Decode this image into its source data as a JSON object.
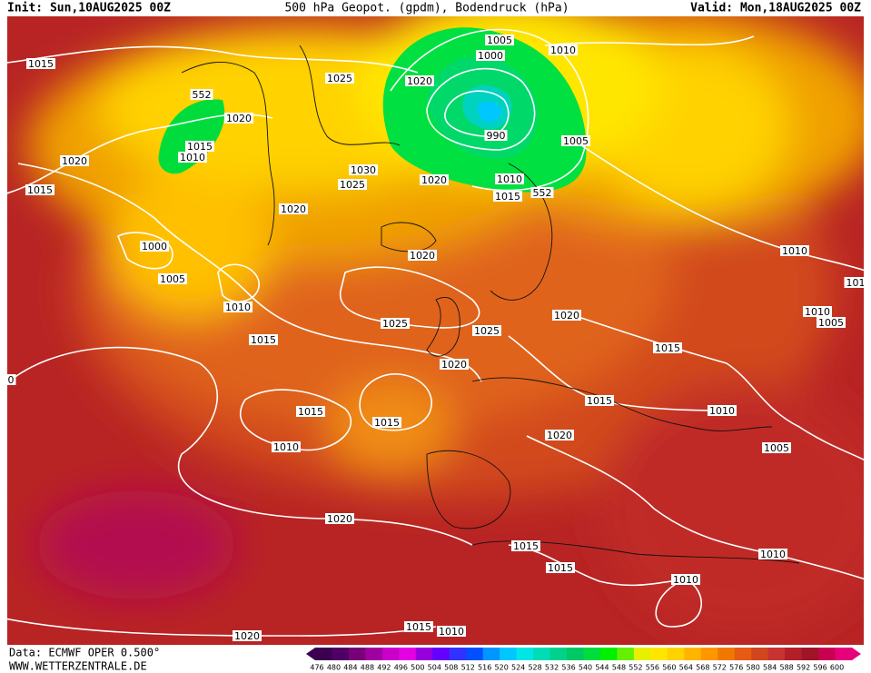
{
  "header": {
    "init": "Init: Sun,10AUG2025 00Z",
    "title": "500 hPa Geopot. (gpdm), Bodendruck (hPa)",
    "valid": "Valid: Mon,18AUG2025 00Z"
  },
  "footer": {
    "source": "Data: ECMWF OPER 0.500°",
    "site": "WWW.WETTERZENTRALE.DE"
  },
  "isobar_labels": [
    "1015",
    "552",
    "1020",
    "1015",
    "1010",
    "1020",
    "1015",
    "1000",
    "1005",
    "1010",
    "1015",
    "1025",
    "1020",
    "1030",
    "1025",
    "1020",
    "1020",
    "1020",
    "1005",
    "1000",
    "1010",
    "990",
    "1005",
    "1010",
    "1015",
    "552",
    "1025",
    "1025",
    "1020",
    "1020",
    "1015",
    "1015",
    "1015",
    "1010",
    "1015",
    "1020",
    "1010",
    "1005",
    "1010",
    "1010",
    "1005",
    "101",
    "0",
    "1020",
    "1015",
    "1015",
    "1010",
    "1010",
    "1020",
    "1015",
    "1010"
  ],
  "scale": [
    {
      "label": "476",
      "color": "#3c0050"
    },
    {
      "label": "480",
      "color": "#500064"
    },
    {
      "label": "484",
      "color": "#780078"
    },
    {
      "label": "488",
      "color": "#a000a0"
    },
    {
      "label": "492",
      "color": "#c800c8"
    },
    {
      "label": "496",
      "color": "#e600e6"
    },
    {
      "label": "500",
      "color": "#9600dc"
    },
    {
      "label": "504",
      "color": "#6400ff"
    },
    {
      "label": "508",
      "color": "#3232ff"
    },
    {
      "label": "512",
      "color": "#0050ff"
    },
    {
      "label": "516",
      "color": "#0096ff"
    },
    {
      "label": "520",
      "color": "#00c8ff"
    },
    {
      "label": "524",
      "color": "#00e6e6"
    },
    {
      "label": "528",
      "color": "#00dcb4"
    },
    {
      "label": "532",
      "color": "#00d28c"
    },
    {
      "label": "536",
      "color": "#00c864"
    },
    {
      "label": "540",
      "color": "#00dc3c"
    },
    {
      "label": "544",
      "color": "#00f000"
    },
    {
      "label": "548",
      "color": "#64f000"
    },
    {
      "label": "552",
      "color": "#e6f000"
    },
    {
      "label": "556",
      "color": "#ffe600"
    },
    {
      "label": "560",
      "color": "#ffd200"
    },
    {
      "label": "564",
      "color": "#ffb400"
    },
    {
      "label": "568",
      "color": "#ff9600"
    },
    {
      "label": "572",
      "color": "#f07800"
    },
    {
      "label": "576",
      "color": "#e65a14"
    },
    {
      "label": "580",
      "color": "#d2461e"
    },
    {
      "label": "584",
      "color": "#c83232"
    },
    {
      "label": "588",
      "color": "#b41e28"
    },
    {
      "label": "592",
      "color": "#a01428"
    },
    {
      "label": "596",
      "color": "#c80050"
    },
    {
      "label": "600",
      "color": "#e6007a"
    }
  ]
}
